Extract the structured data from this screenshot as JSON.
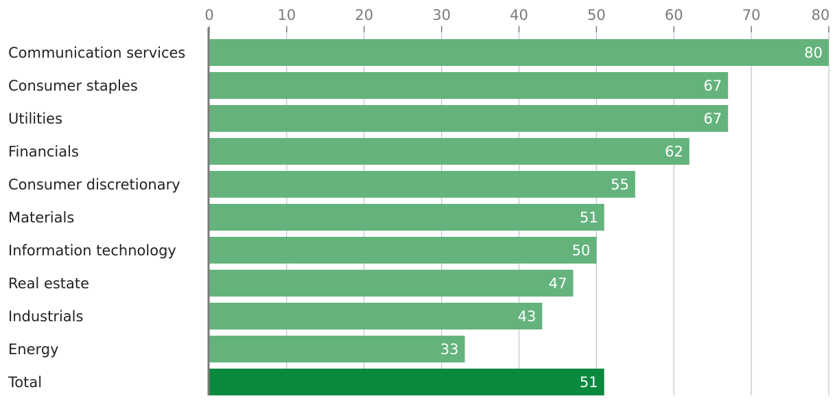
{
  "chart_data": {
    "type": "bar",
    "orientation": "horizontal",
    "title": "",
    "xlabel": "",
    "ylabel": "",
    "categories": [
      "Communication services",
      "Consumer staples",
      "Utilities",
      "Financials",
      "Consumer discretionary",
      "Materials",
      "Information technology",
      "Real estate",
      "Industrials",
      "Energy",
      "Total"
    ],
    "values": [
      80,
      67,
      67,
      62,
      55,
      51,
      50,
      47,
      43,
      33,
      51
    ],
    "data_labels": [
      "80",
      "67",
      "67",
      "62",
      "55",
      "51",
      "50",
      "47",
      "43",
      "33",
      "51"
    ],
    "xlim": [
      0,
      80
    ],
    "xticks": [
      0,
      10,
      20,
      30,
      40,
      50,
      60,
      70,
      80
    ],
    "xtick_labels": [
      "0",
      "10",
      "20",
      "30",
      "40",
      "50",
      "60",
      "70",
      "80"
    ],
    "x_axis_position": "top",
    "grid": true,
    "legend": "none",
    "colors": {
      "bar": "#64b37c",
      "highlight_bar": "#0a8a3e",
      "grid": "#b9c3cc",
      "axis": "#7a7a7a",
      "value_label": "#ffffff",
      "category_label": "#222222",
      "tick_label": "#7a7a7a"
    },
    "highlight_category": "Total"
  }
}
